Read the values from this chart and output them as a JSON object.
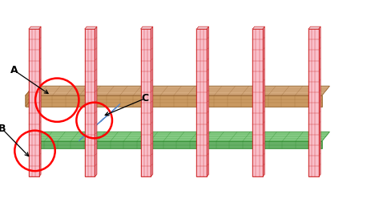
{
  "background_color": "#ffffff",
  "col_face": "#f9c0cb",
  "col_edge": "#cc2222",
  "slab_top_face": "#d4a87a",
  "slab_top_edge": "#9b6a35",
  "slab_side_face": "#c8955a",
  "green_face": "#7bc87a",
  "green_edge": "#2a8a2a",
  "green_side_face": "#55a855",
  "blue_face": "#a8c8f0",
  "blue_edge": "#5588cc",
  "circle_color": "red",
  "label_color": "black",
  "arrow_color": "black",
  "label_A": "A",
  "label_B": "B",
  "label_C": "C"
}
